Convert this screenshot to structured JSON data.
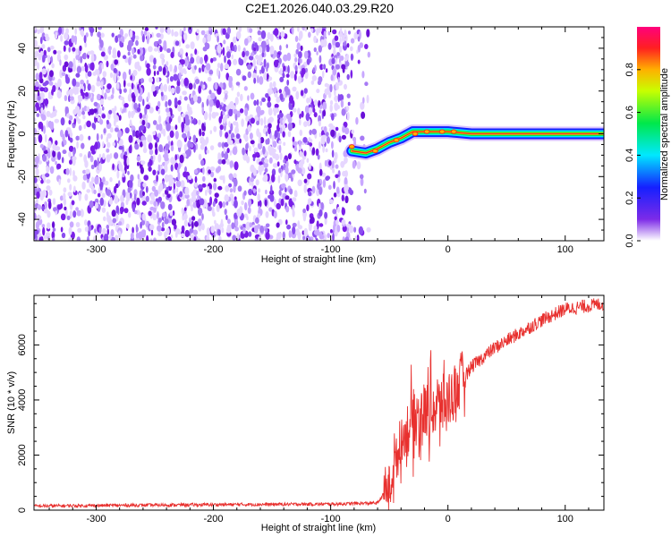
{
  "title": "C2E1.2026.040.03.29.R20",
  "chart_data": [
    {
      "type": "heatmap",
      "xlabel": "Height of straight line (km)",
      "ylabel": "Frequency (Hz)",
      "xlim": [
        -353,
        133
      ],
      "ylim": [
        -50,
        50
      ],
      "xticks": [
        -300,
        -200,
        -100,
        0,
        100
      ],
      "yticks": [
        -40,
        -20,
        0,
        20,
        40
      ],
      "noise_region_x": [
        -353,
        -85
      ],
      "signal_track": [
        {
          "x": -82,
          "y": -8
        },
        {
          "x": -70,
          "y": -9
        },
        {
          "x": -60,
          "y": -7
        },
        {
          "x": -50,
          "y": -4
        },
        {
          "x": -40,
          "y": -2
        },
        {
          "x": -30,
          "y": 1
        },
        {
          "x": -20,
          "y": 1
        },
        {
          "x": -10,
          "y": 1
        },
        {
          "x": 0,
          "y": 1
        },
        {
          "x": 20,
          "y": 0
        },
        {
          "x": 60,
          "y": 0
        },
        {
          "x": 133,
          "y": 0
        }
      ],
      "colorbar": {
        "label": "Normalized spectral amplitude",
        "range": [
          0,
          1
        ],
        "ticks": [
          "0.0",
          "0.2",
          "0.4",
          "0.6",
          "0.8"
        ],
        "tick_values": [
          0,
          0.2,
          0.4,
          0.6,
          0.8
        ]
      }
    },
    {
      "type": "line",
      "xlabel": "Height of straight line (km)",
      "ylabel": "SNR (10 * v/v)",
      "xlim": [
        -353,
        133
      ],
      "ylim": [
        0,
        7800
      ],
      "xticks": [
        -300,
        -200,
        -100,
        0,
        100
      ],
      "yticks": [
        0,
        2000,
        4000,
        6000
      ],
      "color": "#e8302e",
      "series_profile": [
        {
          "x": -353,
          "y": 150
        },
        {
          "x": -200,
          "y": 200
        },
        {
          "x": -100,
          "y": 220
        },
        {
          "x": -60,
          "y": 260
        },
        {
          "x": -50,
          "y": 900
        },
        {
          "x": -40,
          "y": 2500
        },
        {
          "x": -30,
          "y": 3300
        },
        {
          "x": -20,
          "y": 3600
        },
        {
          "x": -10,
          "y": 3700
        },
        {
          "x": 0,
          "y": 4000
        },
        {
          "x": 10,
          "y": 4600
        },
        {
          "x": 20,
          "y": 5200
        },
        {
          "x": 40,
          "y": 5900
        },
        {
          "x": 60,
          "y": 6400
        },
        {
          "x": 80,
          "y": 6900
        },
        {
          "x": 100,
          "y": 7300
        },
        {
          "x": 133,
          "y": 7500
        }
      ]
    }
  ]
}
